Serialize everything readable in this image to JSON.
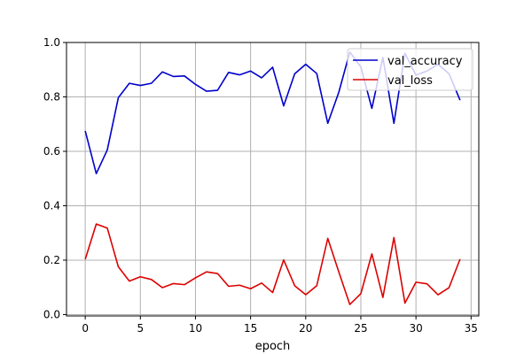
{
  "chart_data": {
    "type": "line",
    "title": "",
    "xlabel": "epoch",
    "ylabel": "",
    "xlim": [
      -1.7,
      35.7
    ],
    "ylim": [
      -0.005,
      1.0
    ],
    "grid": true,
    "legend_position": "top-right",
    "x_ticks": [
      0,
      5,
      10,
      15,
      20,
      25,
      30,
      35
    ],
    "x_tick_labels": [
      "0",
      "5",
      "10",
      "15",
      "20",
      "25",
      "30",
      "35"
    ],
    "y_ticks": [
      0.0,
      0.2,
      0.4,
      0.6,
      0.8,
      1.0
    ],
    "y_tick_labels": [
      "0.0",
      "0.2",
      "0.4",
      "0.6",
      "0.8",
      "1.0"
    ],
    "x": [
      0,
      1,
      2,
      3,
      4,
      5,
      6,
      7,
      8,
      9,
      10,
      11,
      12,
      13,
      14,
      15,
      16,
      17,
      18,
      19,
      20,
      21,
      22,
      23,
      24,
      25,
      26,
      27,
      28,
      29,
      30,
      31,
      32,
      33,
      34
    ],
    "series": [
      {
        "name": "val_accuracy",
        "color": "#0000cc",
        "values": [
          0.675,
          0.518,
          0.605,
          0.797,
          0.85,
          0.842,
          0.85,
          0.892,
          0.875,
          0.877,
          0.846,
          0.821,
          0.824,
          0.89,
          0.881,
          0.895,
          0.87,
          0.909,
          0.767,
          0.885,
          0.92,
          0.886,
          0.703,
          0.817,
          0.965,
          0.91,
          0.758,
          0.945,
          0.703,
          0.96,
          0.88,
          0.895,
          0.92,
          0.885,
          0.788
        ]
      },
      {
        "name": "val_loss",
        "color": "#dd0000",
        "values": [
          0.203,
          0.333,
          0.318,
          0.176,
          0.123,
          0.139,
          0.129,
          0.099,
          0.114,
          0.11,
          0.135,
          0.157,
          0.151,
          0.104,
          0.108,
          0.095,
          0.116,
          0.081,
          0.201,
          0.106,
          0.073,
          0.106,
          0.28,
          0.157,
          0.037,
          0.077,
          0.223,
          0.063,
          0.283,
          0.042,
          0.119,
          0.113,
          0.073,
          0.099,
          0.204
        ]
      }
    ]
  }
}
